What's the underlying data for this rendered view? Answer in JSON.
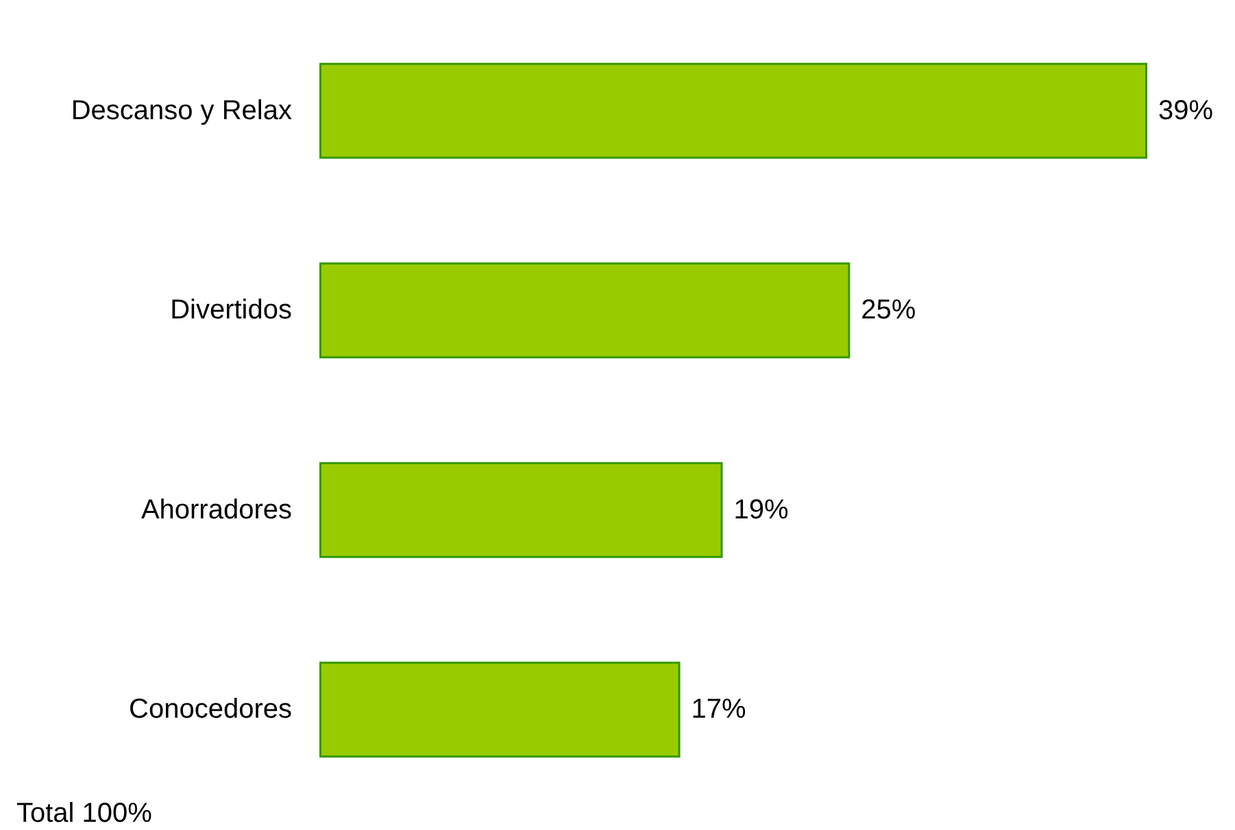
{
  "chart_data": {
    "type": "bar",
    "orientation": "horizontal",
    "categories": [
      "Descanso y Relax",
      "Divertidos",
      "Ahorradores",
      "Conocedores"
    ],
    "values": [
      39,
      25,
      19,
      17
    ],
    "color": "#99cc00",
    "value_labels": [
      "39%",
      "25%",
      "19%",
      "17%"
    ],
    "annotations": [
      "Total 100%"
    ]
  }
}
